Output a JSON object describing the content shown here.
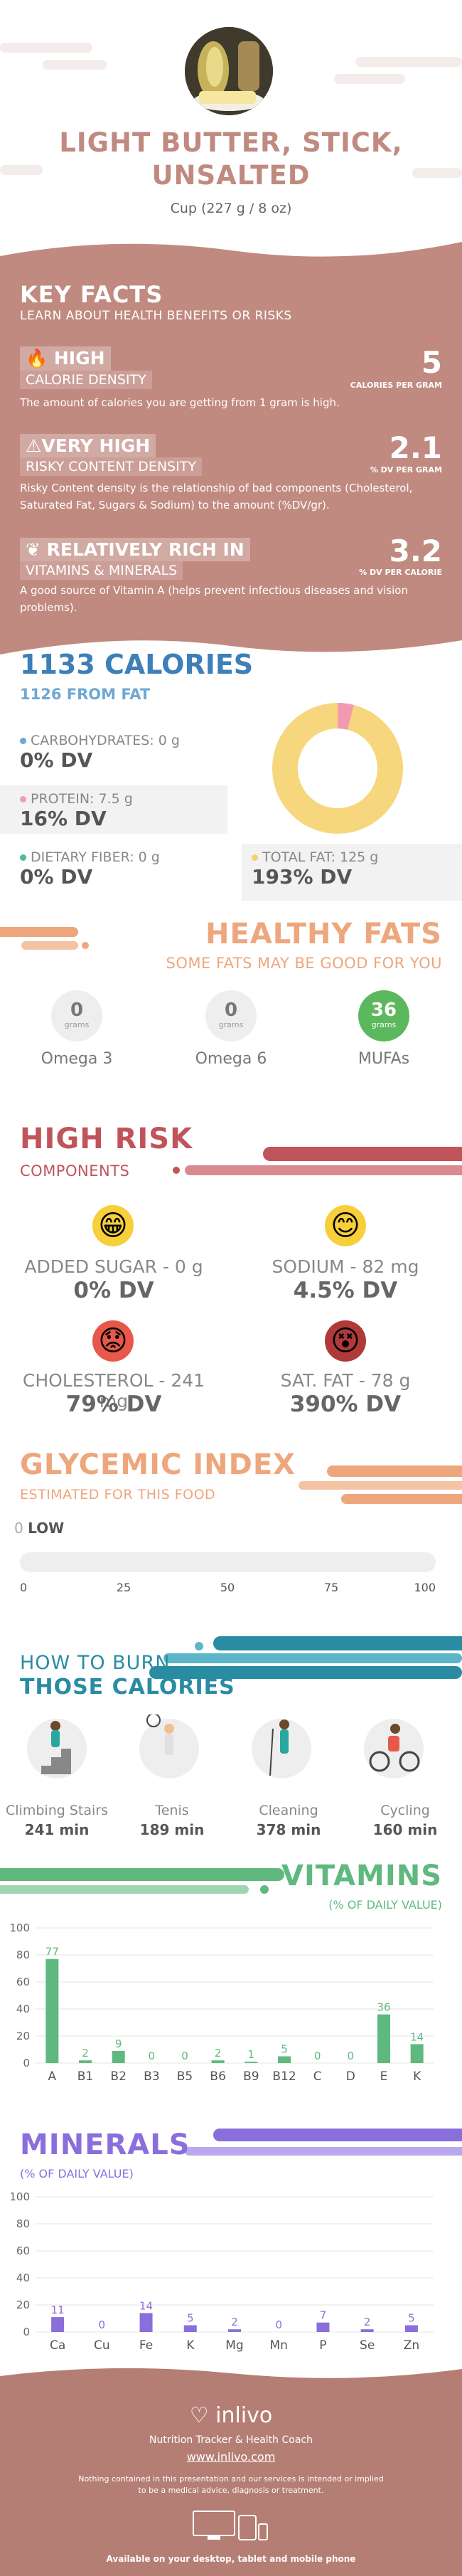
{
  "header": {
    "title": "LIGHT BUTTER, STICK, UNSALTED",
    "serving": "Cup (227 g / 8 oz)"
  },
  "key_facts": {
    "title": "KEY FACTS",
    "subtitle": "LEARN ABOUT HEALTH BENEFITS OR RISKS",
    "items": [
      {
        "label": "HIGH",
        "sublabel": "CALORIE DENSITY",
        "value": "5",
        "unit": "CALORIES PER GRAM",
        "desc": "The amount of calories you are getting from 1 gram is high.",
        "icon": "flame-icon"
      },
      {
        "label": "VERY HIGH",
        "sublabel": "RISKY CONTENT DENSITY",
        "value": "2.1",
        "unit": "% DV PER GRAM",
        "desc": "Risky Content density is the relationship of bad components (Cholesterol, Saturated Fat, Sugars & Sodium) to the amount (%DV/gr).",
        "icon": "warning-icon"
      },
      {
        "label": "RELATIVELY RICH  IN",
        "sublabel": "VITAMINS & MINERALS",
        "value": "3.2",
        "unit": "% DV PER CALORIE",
        "desc": "A good source of Vitamin A (helps prevent infectious diseases and vision problems).",
        "icon": "leaf-icon"
      }
    ]
  },
  "calories": {
    "title": "1133 CALORIES",
    "from_fat": "1126 FROM FAT",
    "nutrients": [
      {
        "label": "CARBOHYDRATES: 0 g",
        "dv": "0% DV",
        "color": "#6da8d6"
      },
      {
        "label": "PROTEIN: 7.5 g",
        "dv": "16% DV",
        "color": "#f29bb0"
      },
      {
        "label": "DIETARY FIBER: 0 g",
        "dv": "0% DV",
        "color": "#4fb8a0"
      },
      {
        "label": "TOTAL FAT: 125 g",
        "dv": "193% DV",
        "color": "#f6cf6b"
      }
    ],
    "donut": {
      "fat_fraction": 0.96,
      "protein_fraction": 0.04,
      "fat_color": "#f7d77d",
      "protein_color": "#f29bb0"
    }
  },
  "healthy_fats": {
    "title": "HEALTHY FATS",
    "subtitle": "SOME FATS MAY BE GOOD FOR YOU",
    "items": [
      {
        "value": "0",
        "unit": "grams",
        "name": "Omega 3"
      },
      {
        "value": "0",
        "unit": "grams",
        "name": "Omega 6"
      },
      {
        "value": "36",
        "unit": "grams",
        "name": "MUFAs"
      }
    ]
  },
  "high_risk": {
    "title": "HIGH RISK",
    "subtitle": "COMPONENTS",
    "items": [
      {
        "label": "ADDED SUGAR - 0 g",
        "dv": "0% DV",
        "face": "😁",
        "color": "#f6cf3b"
      },
      {
        "label": "SODIUM - 82 mg",
        "dv": "4.5% DV",
        "face": "😊",
        "color": "#f6cf3b"
      },
      {
        "label": "CHOLESTEROL - 241 mg",
        "dv": "79% DV",
        "face": "😟",
        "color": "#e8584a"
      },
      {
        "label": "SAT. FAT - 78 g",
        "dv": "390% DV",
        "face": "😵",
        "color": "#b03a3a"
      }
    ]
  },
  "glycemic": {
    "title": "GLYCEMIC INDEX",
    "subtitle": "ESTIMATED FOR THIS FOOD",
    "value": "0",
    "level": "LOW",
    "ticks": [
      "0",
      "25",
      "50",
      "75",
      "100"
    ]
  },
  "burn": {
    "title1": "HOW TO BURN",
    "title2": "THOSE CALORIES",
    "items": [
      {
        "name": "Climbing Stairs",
        "min": "241 min"
      },
      {
        "name": "Tenis",
        "min": "189 min"
      },
      {
        "name": "Cleaning",
        "min": "378 min"
      },
      {
        "name": "Cycling",
        "min": "160 min"
      }
    ]
  },
  "chart_data": [
    {
      "type": "bar",
      "title": "VITAMINS",
      "subtitle": "(% OF DAILY VALUE)",
      "categories": [
        "A",
        "B1",
        "B2",
        "B3",
        "B5",
        "B6",
        "B9",
        "B12",
        "C",
        "D",
        "E",
        "K"
      ],
      "values": [
        77,
        2,
        9,
        0,
        0,
        2,
        1,
        5,
        0,
        0,
        36,
        14
      ],
      "ylim": [
        0,
        100
      ],
      "yticks": [
        "0",
        "20",
        "40",
        "60",
        "80",
        "100"
      ],
      "color": "#5fb97f"
    },
    {
      "type": "bar",
      "title": "MINERALS",
      "subtitle": "(% OF DAILY VALUE)",
      "categories": [
        "Ca",
        "Cu",
        "Fe",
        "K",
        "Mg",
        "Mn",
        "P",
        "Se",
        "Zn"
      ],
      "values": [
        11,
        0,
        14,
        5,
        2,
        0,
        7,
        2,
        5
      ],
      "ylim": [
        0,
        100
      ],
      "yticks": [
        "0",
        "20",
        "40",
        "60",
        "80",
        "100"
      ],
      "color": "#8a6fdc"
    }
  ],
  "footer": {
    "brand": "inlivo",
    "tagline": "Nutrition Tracker & Health Coach",
    "url": "www.inlivo.com",
    "disclaimer1": "Nothing contained in this presentation and our services is intended or implied",
    "disclaimer2": "to be a medical advice, diagnosis or treatment.",
    "available": "Available on your desktop, tablet and mobile phone"
  }
}
